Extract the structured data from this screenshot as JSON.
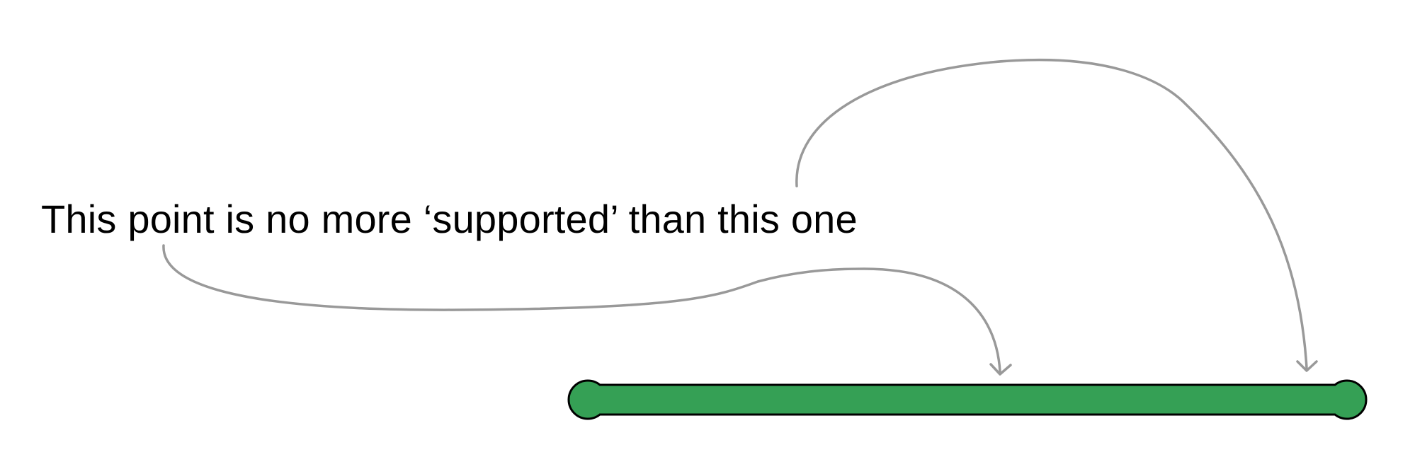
{
  "caption": "This point is no more ‘supported’ than this one",
  "colors": {
    "bar_fill": "#35A055",
    "outline": "#000000",
    "arrow": "#999999",
    "text": "#000000",
    "background": "#FFFFFF"
  },
  "elements": {
    "bar": "range-bar",
    "arrow_left": "curved-arrow",
    "arrow_right": "curved-arrow"
  }
}
